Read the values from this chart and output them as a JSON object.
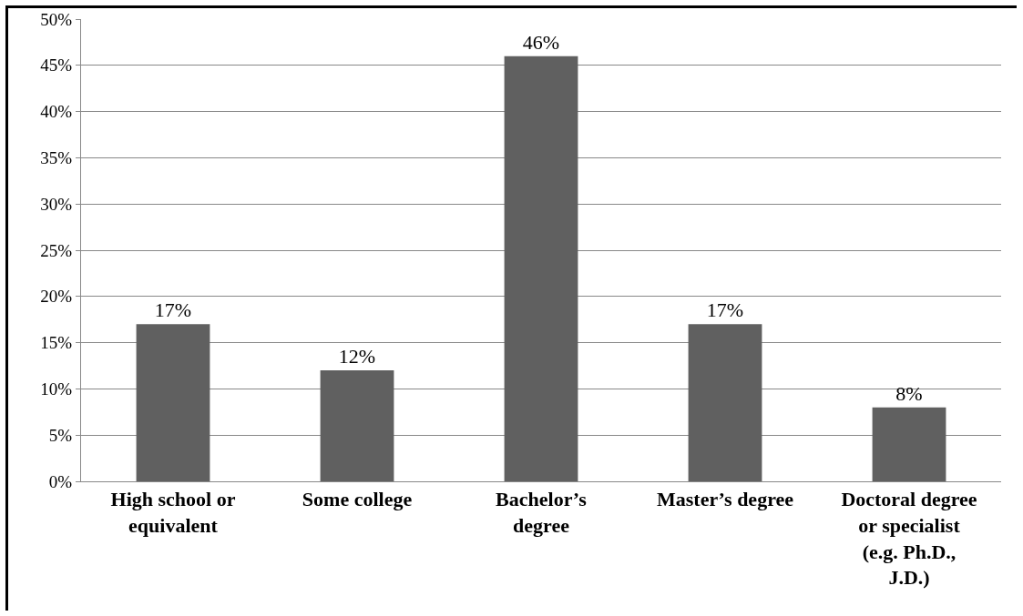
{
  "chart_data": {
    "type": "bar",
    "categories": [
      "High school or equivalent",
      "Some college",
      "Bachelor’s degree",
      "Master’s degree",
      "Doctoral degree or specialist (e.g. Ph.D., J.D.)"
    ],
    "values": [
      17,
      12,
      46,
      17,
      8
    ],
    "value_labels": [
      "17%",
      "12%",
      "46%",
      "17%",
      "8%"
    ],
    "color": "#606060",
    "ylim": [
      0,
      50
    ],
    "yticks": [
      {
        "value": 0,
        "label": "0%"
      },
      {
        "value": 5,
        "label": "5%"
      },
      {
        "value": 10,
        "label": "10%"
      },
      {
        "value": 15,
        "label": "15%"
      },
      {
        "value": 20,
        "label": "20%"
      },
      {
        "value": 25,
        "label": "25%"
      },
      {
        "value": 30,
        "label": "30%"
      },
      {
        "value": 35,
        "label": "35%"
      },
      {
        "value": 40,
        "label": "40%"
      },
      {
        "value": 45,
        "label": "45%"
      },
      {
        "value": 50,
        "label": "50%"
      }
    ],
    "grid": "y"
  }
}
